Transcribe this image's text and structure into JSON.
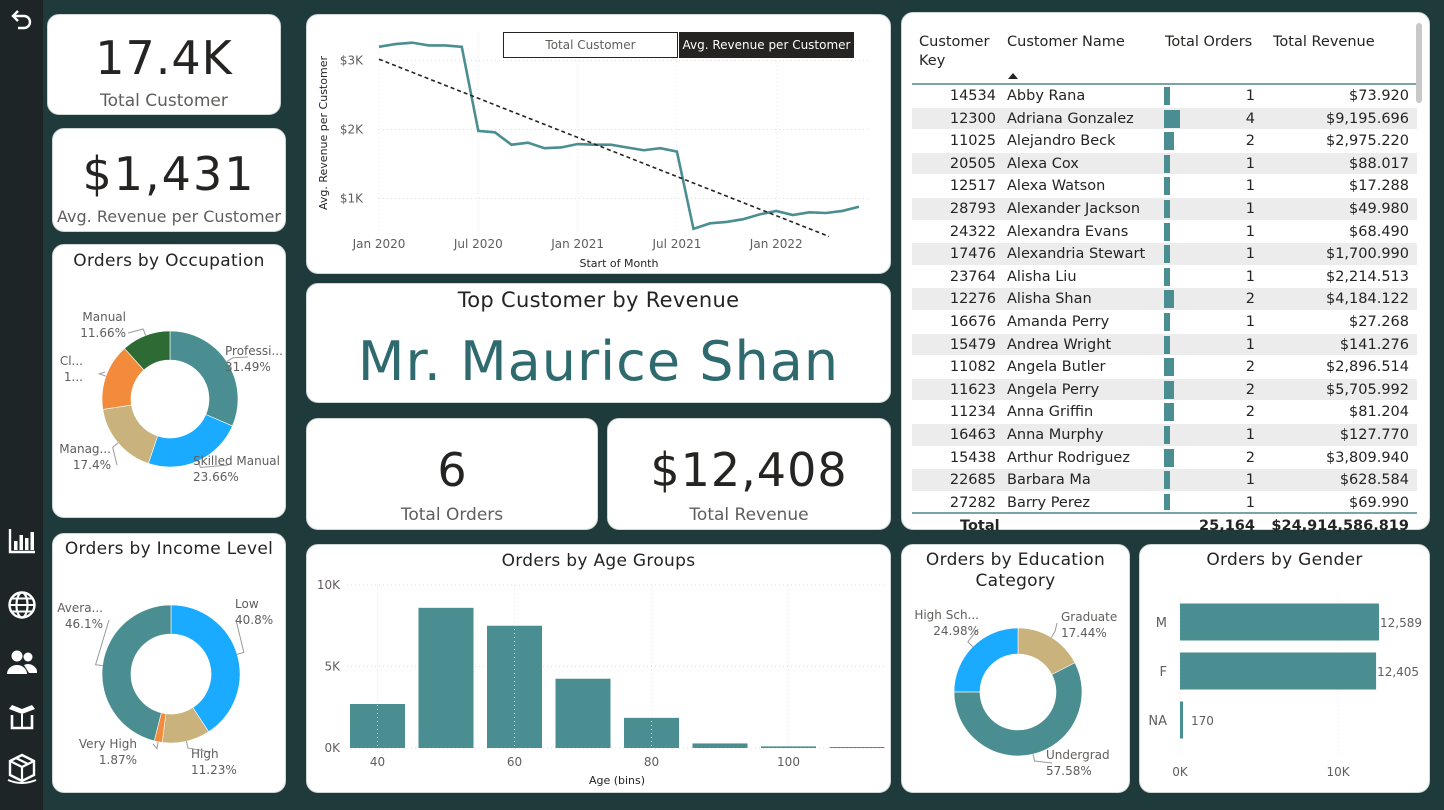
{
  "nav": {
    "icons": [
      "back-arrow-icon",
      "bar-chart-icon",
      "globe-icon",
      "users-icon",
      "box-open-icon",
      "product-box-icon"
    ]
  },
  "kpis": {
    "total_customer": {
      "value": "17.4K",
      "label": "Total Customer"
    },
    "avg_revenue": {
      "value": "$1,431",
      "label": "Avg. Revenue per Customer"
    },
    "top_orders": {
      "value": "6",
      "label": "Total Orders"
    },
    "top_revenue": {
      "value": "$12,408",
      "label": "Total Revenue"
    }
  },
  "top_customer": {
    "title": "Top Customer by Revenue",
    "name": "Mr. Maurice Shan"
  },
  "trend": {
    "buttons": {
      "total_customer": "Total Customer",
      "avg_revenue": "Avg. Revenue per Customer"
    },
    "active": "avg_revenue"
  },
  "table": {
    "headers": [
      "Customer Key",
      "Customer Name",
      "Total Orders",
      "Total Revenue"
    ],
    "sort_icon": "sort-ascending-icon",
    "rows": [
      {
        "key": "14534",
        "name": "Abby Rana",
        "orders": 1,
        "revenue": "$73.920"
      },
      {
        "key": "12300",
        "name": "Adriana Gonzalez",
        "orders": 4,
        "revenue": "$9,195.696"
      },
      {
        "key": "11025",
        "name": "Alejandro Beck",
        "orders": 2,
        "revenue": "$2,975.220"
      },
      {
        "key": "20505",
        "name": "Alexa Cox",
        "orders": 1,
        "revenue": "$88.017"
      },
      {
        "key": "12517",
        "name": "Alexa Watson",
        "orders": 1,
        "revenue": "$17.288"
      },
      {
        "key": "28793",
        "name": "Alexander Jackson",
        "orders": 1,
        "revenue": "$49.980"
      },
      {
        "key": "24322",
        "name": "Alexandra Evans",
        "orders": 1,
        "revenue": "$68.490"
      },
      {
        "key": "17476",
        "name": "Alexandria Stewart",
        "orders": 1,
        "revenue": "$1,700.990"
      },
      {
        "key": "23764",
        "name": "Alisha Liu",
        "orders": 1,
        "revenue": "$2,214.513"
      },
      {
        "key": "12276",
        "name": "Alisha Shan",
        "orders": 2,
        "revenue": "$4,184.122"
      },
      {
        "key": "16676",
        "name": "Amanda Perry",
        "orders": 1,
        "revenue": "$27.268"
      },
      {
        "key": "15479",
        "name": "Andrea Wright",
        "orders": 1,
        "revenue": "$141.276"
      },
      {
        "key": "11082",
        "name": "Angela Butler",
        "orders": 2,
        "revenue": "$2,896.514"
      },
      {
        "key": "11623",
        "name": "Angela Perry",
        "orders": 2,
        "revenue": "$5,705.992"
      },
      {
        "key": "11234",
        "name": "Anna Griffin",
        "orders": 2,
        "revenue": "$81.204"
      },
      {
        "key": "16463",
        "name": "Anna Murphy",
        "orders": 1,
        "revenue": "$127.770"
      },
      {
        "key": "15438",
        "name": "Arthur Rodriguez",
        "orders": 2,
        "revenue": "$3,809.940"
      },
      {
        "key": "22685",
        "name": "Barbara Ma",
        "orders": 1,
        "revenue": "$628.584"
      },
      {
        "key": "27282",
        "name": "Barry Perez",
        "orders": 1,
        "revenue": "$69.990"
      }
    ],
    "total": {
      "label": "Total",
      "orders": "25,164",
      "revenue": "$24,914,586.819"
    }
  },
  "chart_data": [
    {
      "id": "revenue_trend",
      "type": "line",
      "title": "",
      "xlabel": "Start of Month",
      "ylabel": "Avg. Revenue per Customer",
      "x_ticks": [
        "Jan 2020",
        "Jul 2020",
        "Jan 2021",
        "Jul 2021",
        "Jan 2022"
      ],
      "y_ticks": [
        "$1K",
        "$2K",
        "$3K"
      ],
      "ylim": [
        500,
        3400
      ],
      "x": [
        "2020-01",
        "2020-02",
        "2020-03",
        "2020-04",
        "2020-05",
        "2020-06",
        "2020-07",
        "2020-08",
        "2020-09",
        "2020-10",
        "2020-11",
        "2020-12",
        "2021-01",
        "2021-02",
        "2021-03",
        "2021-04",
        "2021-05",
        "2021-06",
        "2021-07",
        "2021-08",
        "2021-09",
        "2021-10",
        "2021-11",
        "2021-12",
        "2022-01",
        "2022-02",
        "2022-03",
        "2022-04",
        "2022-05",
        "2022-06"
      ],
      "values": [
        3200,
        3240,
        3260,
        3220,
        3220,
        3200,
        1980,
        1960,
        1780,
        1810,
        1730,
        1740,
        1790,
        1780,
        1780,
        1740,
        1700,
        1730,
        1680,
        560,
        640,
        660,
        700,
        770,
        820,
        760,
        800,
        790,
        820,
        880
      ],
      "trendline": {
        "start": 3020,
        "end": 450
      },
      "grid": true
    },
    {
      "id": "occupation",
      "type": "pie",
      "title": "Orders by Occupation",
      "categories": [
        "Professional",
        "Skilled Manual",
        "Management",
        "Clerical",
        "Manual"
      ],
      "labels": [
        "Professi...",
        "Skilled Manual",
        "Manag...",
        "Cl...",
        "Manual"
      ],
      "pct_labels": [
        "31.49%",
        "23.66%",
        "17.4%",
        "1...",
        "11.66%"
      ],
      "values": [
        31.49,
        23.66,
        17.4,
        15.79,
        11.66
      ],
      "colors": [
        "#4a8e91",
        "#1aaaff",
        "#c9b27c",
        "#f28c3c",
        "#2e6b34"
      ]
    },
    {
      "id": "income",
      "type": "pie",
      "title": "Orders by Income Level",
      "categories": [
        "Low",
        "High",
        "Very High",
        "Average"
      ],
      "labels": [
        "Low",
        "High",
        "Very High",
        "Avera..."
      ],
      "pct_labels": [
        "40.8%",
        "11.23%",
        "1.87%",
        "46.1%"
      ],
      "values": [
        40.8,
        11.23,
        1.87,
        46.1
      ],
      "colors": [
        "#1aaaff",
        "#c9b27c",
        "#f28c3c",
        "#4a8e91"
      ]
    },
    {
      "id": "age",
      "type": "bar",
      "title": "Orders by Age Groups",
      "xlabel": "Age (bins)",
      "ylabel": "",
      "x_ticks": [
        "40",
        "60",
        "80",
        "100"
      ],
      "y_ticks": [
        "0K",
        "5K",
        "10K"
      ],
      "categories": [
        "35",
        "45",
        "55",
        "65",
        "75",
        "85",
        "95",
        "105"
      ],
      "values": [
        2700,
        8600,
        7500,
        4250,
        1850,
        280,
        100,
        60
      ],
      "ylim": [
        0,
        10000
      ],
      "grid": true
    },
    {
      "id": "education",
      "type": "pie",
      "title": "Orders by Education Category",
      "categories": [
        "Graduate",
        "Undergrad",
        "High School"
      ],
      "labels": [
        "Graduate",
        "Undergrad",
        "High Sch..."
      ],
      "pct_labels": [
        "17.44%",
        "57.58%",
        "24.98%"
      ],
      "values": [
        17.44,
        57.58,
        24.98
      ],
      "colors": [
        "#c9b27c",
        "#4a8e91",
        "#1aaaff"
      ]
    },
    {
      "id": "gender",
      "type": "bar",
      "title": "Orders by Gender",
      "categories": [
        "M",
        "F",
        "NA"
      ],
      "values": [
        12589,
        12405,
        170
      ],
      "value_labels": [
        "12,589",
        "12,405",
        "170"
      ],
      "x_ticks": [
        "0K",
        "10K"
      ],
      "xlim": [
        0,
        12589
      ]
    }
  ]
}
